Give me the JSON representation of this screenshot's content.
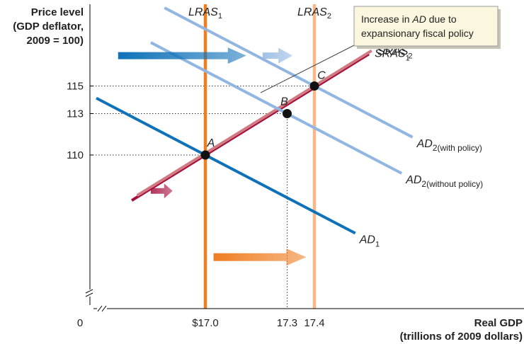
{
  "chart_data": {
    "type": "line",
    "title": "",
    "ylabel_lines": [
      "Price level",
      "(GDP deflator,",
      "2009 = 100)"
    ],
    "xlabel_lines": [
      "Real GDP",
      "(trillions of 2009 dollars)"
    ],
    "origin_label": "0",
    "x_ticks": [
      {
        "value": 17.0,
        "label": "$17.0"
      },
      {
        "value": 17.3,
        "label": "17.3"
      },
      {
        "value": 17.4,
        "label": "17.4"
      }
    ],
    "y_ticks": [
      {
        "value": 110,
        "label": "110"
      },
      {
        "value": 113,
        "label": "113"
      },
      {
        "value": 115,
        "label": "115"
      }
    ],
    "axis_breaks": true,
    "points": [
      {
        "label": "A",
        "x": 17.0,
        "y": 110
      },
      {
        "label": "B",
        "x": 17.3,
        "y": 113
      },
      {
        "label": "C",
        "x": 17.4,
        "y": 115
      }
    ],
    "series": [
      {
        "key": "lras1",
        "name": "LRAS",
        "sub": "1",
        "kind": "vertical",
        "x": 17.0,
        "color": "#ef7d22"
      },
      {
        "key": "lras2",
        "name": "LRAS",
        "sub": "2",
        "kind": "vertical",
        "x": 17.4,
        "color": "#f7b889"
      },
      {
        "key": "sras1",
        "name": "SRAS",
        "sub": "1",
        "kind": "line",
        "through": [
          17.0,
          110
        ],
        "slope": 12.2,
        "x_range": [
          16.73,
          17.6
        ],
        "color": "#a50e3d"
      },
      {
        "key": "sras2",
        "name": "SRAS",
        "sub": "2",
        "kind": "line",
        "through": [
          17.4,
          115
        ],
        "slope": 12.2,
        "x_range": [
          16.75,
          17.61
        ],
        "color": "#d07b82"
      },
      {
        "key": "ad1",
        "name": "AD",
        "sub": "1",
        "kind": "line",
        "through": [
          17.0,
          110
        ],
        "slope": -10.3,
        "x_range": [
          16.6,
          17.55
        ],
        "color": "#0f72b8"
      },
      {
        "key": "ad2wo",
        "name": "AD",
        "sub": "2(without policy)",
        "kind": "line",
        "through": [
          17.3,
          113
        ],
        "slope": -10.3,
        "x_range": [
          16.8,
          17.72
        ],
        "color": "#91b6e1"
      },
      {
        "key": "ad2w",
        "name": "AD",
        "sub": "2(with policy)",
        "kind": "line",
        "through": [
          17.4,
          115
        ],
        "slope": -10.3,
        "x_range": [
          16.85,
          17.76
        ],
        "color": "#91b6e1"
      }
    ],
    "callout": {
      "lines": [
        [
          {
            "text": "Increase in ",
            "italic": false
          },
          {
            "text": "AD",
            "italic": true
          },
          {
            "text": " due to",
            "italic": false
          }
        ],
        [
          {
            "text": "expansionary fiscal policy",
            "italic": false
          }
        ]
      ],
      "box_color": "#fbf7df",
      "border_color": "#9a9a9a"
    },
    "shift_arrows": [
      {
        "key": "ad_shift_1",
        "color": "#0f72b8",
        "from": [
          16.68,
          117.2
        ],
        "to": [
          17.15,
          117.2
        ]
      },
      {
        "key": "ad_shift_2",
        "color": "#91b6e1",
        "from": [
          17.21,
          117.2
        ],
        "to": [
          17.32,
          117.2
        ]
      },
      {
        "key": "sras_shift",
        "color": "#a50e3d",
        "from": [
          16.8,
          107.4
        ],
        "to": [
          16.88,
          107.4
        ]
      },
      {
        "key": "lras_shift",
        "color": "#ef7d22",
        "from": [
          17.03,
          102.6
        ],
        "to": [
          17.37,
          102.6
        ]
      }
    ]
  }
}
